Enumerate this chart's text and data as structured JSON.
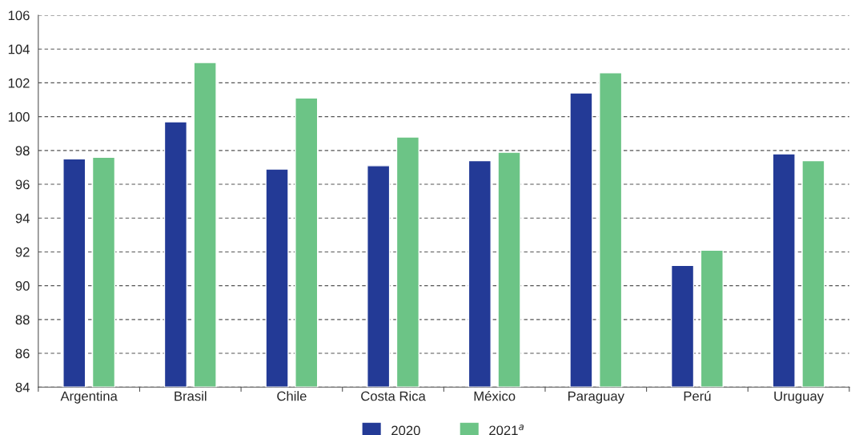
{
  "chart_data": {
    "type": "bar",
    "categories": [
      "Argentina",
      "Brasil",
      "Chile",
      "Costa Rica",
      "México",
      "Paraguay",
      "Perú",
      "Uruguay"
    ],
    "series": [
      {
        "name": "2020",
        "color": "#233a96",
        "values": [
          97.5,
          99.7,
          96.9,
          97.1,
          97.4,
          101.4,
          91.2,
          97.8
        ]
      },
      {
        "name": "2021$^{a}$",
        "color": "#6cc486",
        "values": [
          97.6,
          103.2,
          101.1,
          98.8,
          97.9,
          102.6,
          92.1,
          97.4
        ]
      }
    ],
    "ylim": [
      84,
      106
    ],
    "yticks": [
      84,
      86,
      88,
      90,
      92,
      94,
      96,
      98,
      100,
      102,
      104,
      106
    ],
    "grid": "y",
    "legend": "bottom"
  }
}
